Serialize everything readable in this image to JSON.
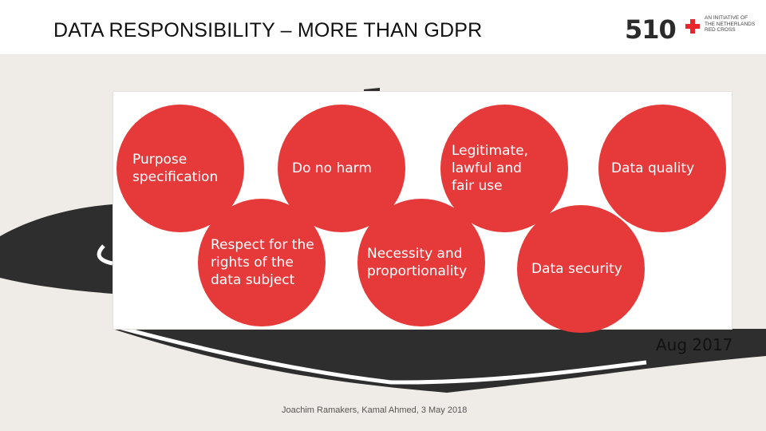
{
  "header": {
    "title": "DATA RESPONSIBILITY – MORE THAN GDPR",
    "logo_text": "510",
    "org_lines": [
      "AN INITIATIVE OF",
      "THE NETHERLANDS",
      "RED CROSS"
    ]
  },
  "principles": [
    {
      "label": "Purpose specification"
    },
    {
      "label": "Do no harm"
    },
    {
      "label": "Legitimate, lawful and fair use"
    },
    {
      "label": "Data quality"
    },
    {
      "label": "Respect for the rights of the data subject"
    },
    {
      "label": "Necessity and proportionality"
    },
    {
      "label": "Data security"
    }
  ],
  "date_label": "Aug 2017",
  "footer": {
    "text": "Joachim Ramakers, Kamal Ahmed, 3 May 2018"
  },
  "colors": {
    "accent": "#e63a3a",
    "cross": "#e8272c",
    "background": "#efebe6",
    "road": "#2e2e2e"
  }
}
